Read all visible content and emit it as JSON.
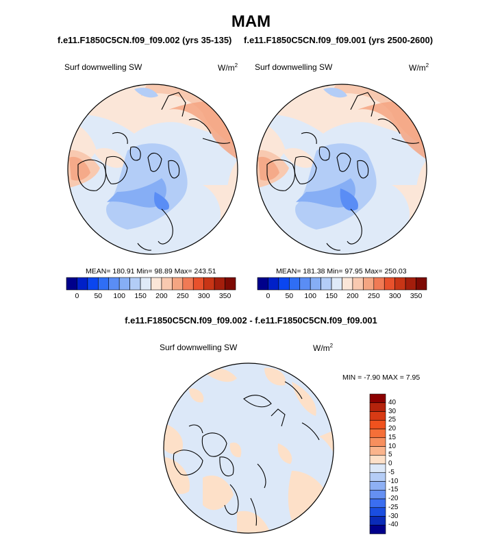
{
  "page": {
    "title": "MAM",
    "diff_title": "f.e11.F1850C5CN.f09_f09.002 - f.e11.F1850C5CN.f09_f09.001"
  },
  "panels": [
    {
      "case_title": "f.e11.F1850C5CN.f09_f09.002 (yrs 35-135)",
      "variable": "Surf downwelling SW",
      "units_base": "W/m",
      "units_exp": "2",
      "stats": "MEAN= 180.91  Min=  98.89  Max= 243.51"
    },
    {
      "case_title": "f.e11.F1850C5CN.f09_f09.001 (yrs 2500-2600)",
      "variable": "Surf downwelling SW",
      "units_base": "W/m",
      "units_exp": "2",
      "stats": "MEAN= 181.38  Min=  97.95  Max= 250.03"
    },
    {
      "variable": "Surf downwelling SW",
      "units_base": "W/m",
      "units_exp": "2",
      "stats": "MIN =  -7.90 MAX =   7.95"
    }
  ],
  "colorbar_main": {
    "colors": [
      "#00008b",
      "#0020c8",
      "#0a46f0",
      "#2f6ef5",
      "#5a8df5",
      "#86aef5",
      "#b3cdf7",
      "#dfeaf8",
      "#fbe6d8",
      "#f8c9b0",
      "#f4a582",
      "#f07a55",
      "#e8512c",
      "#c83516",
      "#a41e0c",
      "#7d0a04"
    ],
    "tick_labels": [
      "0",
      "50",
      "100",
      "150",
      "200",
      "250",
      "300",
      "350"
    ]
  },
  "colorbar_diff": {
    "colors": [
      "#8b0000",
      "#b5230c",
      "#d83a14",
      "#f0521e",
      "#f56f38",
      "#f78f5e",
      "#fab48c",
      "#fde0c8",
      "#dce8f8",
      "#b5cdf6",
      "#8eb0f4",
      "#6590f2",
      "#3b6ef0",
      "#1a4ee0",
      "#0a2bb8",
      "#00008b"
    ],
    "tick_labels": [
      "40",
      "30",
      "25",
      "20",
      "15",
      "10",
      "5",
      "0",
      "-5",
      "-10",
      "-15",
      "-20",
      "-25",
      "-30",
      "-40"
    ]
  },
  "chart_data": [
    {
      "type": "heatmap",
      "projection": "north polar stereographic",
      "title": "f.e11.F1850C5CN.f09_f09.002 (yrs 35-135)",
      "variable": "Surf downwelling SW",
      "units": "W/m2",
      "season": "MAM",
      "mean": 180.91,
      "min": 98.89,
      "max": 243.51,
      "contour_levels": [
        0,
        25,
        50,
        75,
        100,
        125,
        150,
        175,
        200,
        225,
        250,
        275,
        300,
        325,
        350
      ]
    },
    {
      "type": "heatmap",
      "projection": "north polar stereographic",
      "title": "f.e11.F1850C5CN.f09_f09.001 (yrs 2500-2600)",
      "variable": "Surf downwelling SW",
      "units": "W/m2",
      "season": "MAM",
      "mean": 181.38,
      "min": 97.95,
      "max": 250.03,
      "contour_levels": [
        0,
        25,
        50,
        75,
        100,
        125,
        150,
        175,
        200,
        225,
        250,
        275,
        300,
        325,
        350
      ]
    },
    {
      "type": "heatmap",
      "projection": "north polar stereographic",
      "title": "f.e11.F1850C5CN.f09_f09.002 - f.e11.F1850C5CN.f09_f09.001",
      "variable": "Surf downwelling SW",
      "units": "W/m2",
      "min": -7.9,
      "max": 7.95,
      "contour_levels": [
        -40,
        -30,
        -25,
        -20,
        -15,
        -10,
        -5,
        0,
        5,
        10,
        15,
        20,
        25,
        30,
        40
      ]
    }
  ]
}
